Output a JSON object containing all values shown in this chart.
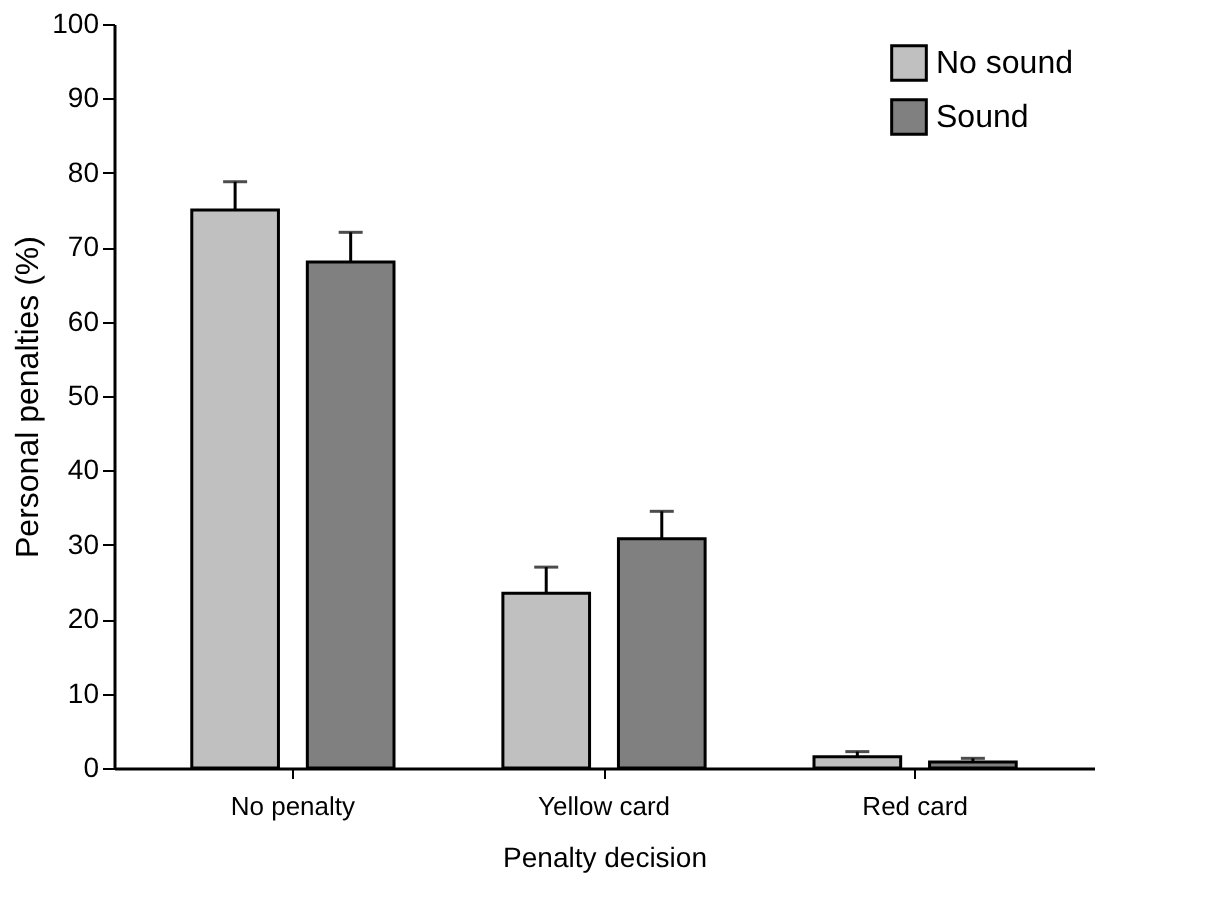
{
  "chart_data": {
    "type": "bar",
    "xlabel": "Penalty decision",
    "ylabel": "Personal penalties (%)",
    "categories": [
      "No penalty",
      "Yellow card",
      "Red card"
    ],
    "series": [
      {
        "name": "No sound",
        "color": "#c0c0c0",
        "values": [
          75,
          23.5,
          1.5
        ],
        "errors": [
          [
            75,
            78.8
          ],
          [
            23.5,
            27
          ],
          [
            1.5,
            2.2
          ]
        ]
      },
      {
        "name": "Sound",
        "color": "#808080",
        "values": [
          68,
          30.8,
          0.8
        ],
        "errors": [
          [
            68,
            72
          ],
          [
            30.8,
            34.5
          ],
          [
            0.8,
            1.3
          ]
        ]
      }
    ],
    "ylim": [
      0,
      100
    ],
    "yticks": [
      0,
      10,
      20,
      30,
      40,
      50,
      60,
      70,
      80,
      90,
      100
    ],
    "grid": false,
    "legend": "top right"
  }
}
